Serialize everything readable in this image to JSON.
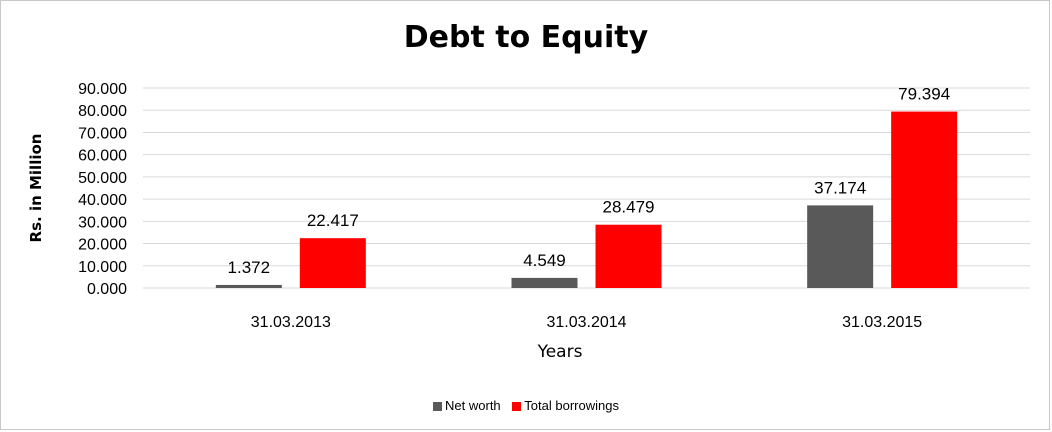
{
  "chart_data": {
    "type": "bar",
    "title": "Debt to Equity",
    "xlabel": "Years",
    "ylabel": "Rs. in Million",
    "categories": [
      "31.03.2013",
      "31.03.2014",
      "31.03.2015"
    ],
    "series": [
      {
        "name": "Net worth",
        "color": "#595959",
        "values": [
          1.372,
          4.549,
          37.174
        ],
        "labels": [
          "1.372",
          "4.549",
          "37.174"
        ]
      },
      {
        "name": "Total borrowings",
        "color": "#ff0000",
        "values": [
          22.417,
          28.479,
          79.394
        ],
        "labels": [
          "22.417",
          "28.479",
          "79.394"
        ]
      }
    ],
    "ylim": [
      0,
      90
    ],
    "yticks": [
      0,
      10,
      20,
      30,
      40,
      50,
      60,
      70,
      80,
      90
    ],
    "ytick_labels": [
      "0.000",
      "10.000",
      "20.000",
      "30.000",
      "40.000",
      "50.000",
      "60.000",
      "70.000",
      "80.000",
      "90.000"
    ],
    "grid": true,
    "legend_position": "bottom"
  }
}
